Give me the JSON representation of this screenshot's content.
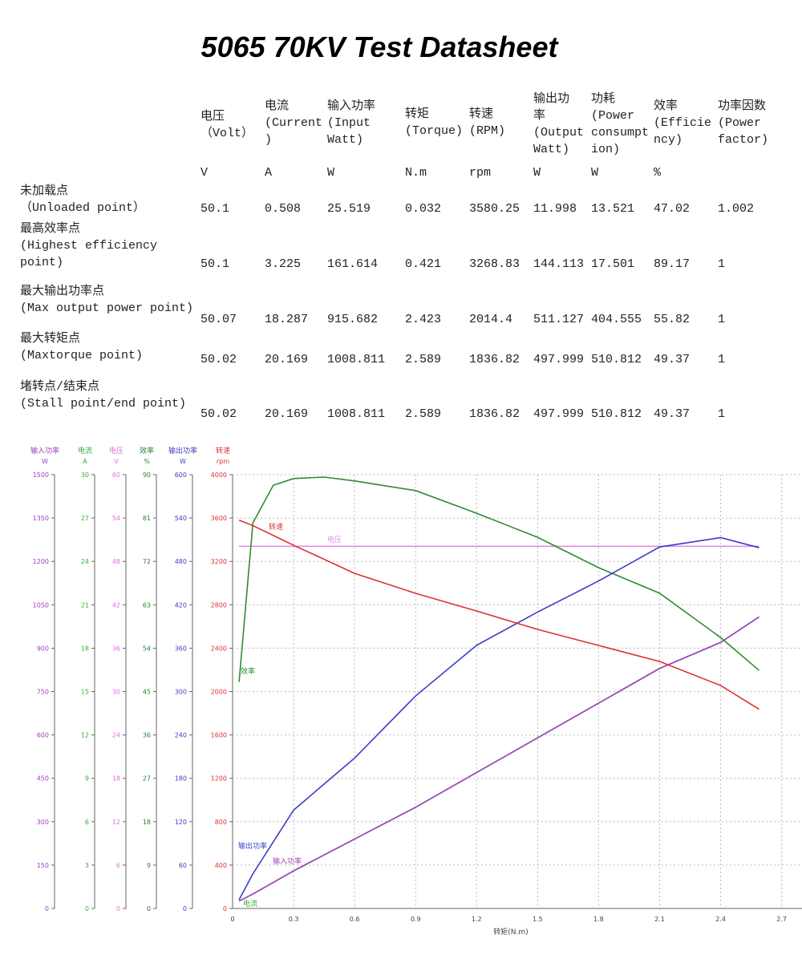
{
  "header": {
    "title": "5065 70KV Test Datasheet"
  },
  "table": {
    "columns": [
      "电压\n（Volt）",
      "电流\n(Current\n)",
      "输入功率\n(Input\nWatt)",
      "转矩\n(Torque)",
      "转速\n(RPM)",
      "输出功\n率\n(Output\nWatt)",
      "功耗\n(Power\nconsumpt\nion)",
      "效率\n(Efficie\nncy)",
      "功率因数\n(Power\nfactor)"
    ],
    "units": [
      "V",
      "A",
      "W",
      "N.m",
      "rpm",
      "W",
      "W",
      "%",
      null
    ],
    "rows": [
      {
        "label": "未加载点\n（Unloaded point）",
        "values": [
          50.1,
          0.508,
          25.519,
          0.032,
          3580.25,
          11.998,
          13.521,
          47.02,
          1.002
        ]
      },
      {
        "label": "最高效率点\n(Highest efficiency\npoint)",
        "values": [
          50.1,
          3.225,
          161.614,
          0.421,
          3268.83,
          144.113,
          17.501,
          89.17,
          1
        ]
      },
      {
        "label": "最大输出功率点\n(Max output power point)",
        "values": [
          50.07,
          18.287,
          915.682,
          2.423,
          2014.4,
          511.127,
          404.555,
          55.82,
          1
        ]
      },
      {
        "label": "最大转矩点\n(Maxtorque point)",
        "values": [
          50.02,
          20.169,
          1008.811,
          2.589,
          1836.82,
          497.999,
          510.812,
          49.37,
          1
        ]
      },
      {
        "label": "堵转点/结束点\n(Stall point/end point)",
        "values": [
          50.02,
          20.169,
          1008.811,
          2.589,
          1836.82,
          497.999,
          510.812,
          49.37,
          1
        ]
      }
    ]
  },
  "chart_data": {
    "type": "line",
    "x_label": "转矩(N.m)",
    "xlim": [
      0,
      2.8
    ],
    "xticks": [
      0,
      0.3,
      0.6,
      0.9,
      1.2,
      1.5,
      1.8,
      2.1,
      2.4,
      2.7
    ],
    "grid": true,
    "y_axes": [
      {
        "name": "输入功率",
        "unit": "W",
        "color": "#a040c0",
        "ylim": [
          0,
          1500
        ],
        "yticks": [
          0,
          150,
          300,
          450,
          600,
          750,
          900,
          1050,
          1200,
          1350,
          1500
        ]
      },
      {
        "name": "电流",
        "unit": "A",
        "color": "#30b030",
        "ylim": [
          0,
          30
        ],
        "yticks": [
          0,
          3,
          6,
          9,
          12,
          15,
          18,
          21,
          24,
          27,
          30
        ]
      },
      {
        "name": "电压",
        "unit": "V",
        "color": "#e070e0",
        "ylim": [
          0,
          60
        ],
        "yticks": [
          0,
          6,
          12,
          18,
          24,
          30,
          36,
          42,
          48,
          54,
          60
        ]
      },
      {
        "name": "效率",
        "unit": "%",
        "color": "#308030",
        "ylim": [
          0,
          90
        ],
        "yticks": [
          0,
          9,
          18,
          27,
          36,
          45,
          54,
          63,
          72,
          81,
          90
        ]
      },
      {
        "name": "输出功率",
        "unit": "W",
        "color": "#4040c0",
        "ylim": [
          0,
          600
        ],
        "yticks": [
          0,
          60,
          120,
          180,
          240,
          300,
          360,
          420,
          480,
          540,
          600
        ]
      },
      {
        "name": "转速",
        "unit": "rpm",
        "color": "#e03030",
        "ylim": [
          0,
          4000
        ],
        "yticks": [
          0,
          400,
          800,
          1200,
          1600,
          2000,
          2400,
          2800,
          3200,
          3600,
          4000
        ]
      }
    ],
    "x": [
      0.032,
      0.1,
      0.2,
      0.3,
      0.45,
      0.6,
      0.9,
      1.2,
      1.5,
      1.8,
      2.1,
      2.4,
      2.589
    ],
    "series": [
      {
        "name": "电流",
        "color": "#30b030",
        "axis": 1,
        "values": [
          0.51,
          1.0,
          1.8,
          2.6,
          3.7,
          4.8,
          7.0,
          9.4,
          11.8,
          14.2,
          16.6,
          18.4,
          20.17
        ]
      },
      {
        "name": "输入功率",
        "color": "#a040c0",
        "axis": 0,
        "values": [
          25.5,
          50,
          90,
          130,
          185,
          240,
          350,
          470,
          590,
          710,
          830,
          920,
          1008
        ]
      },
      {
        "name": "电压",
        "color": "#e090e8",
        "axis": 2,
        "values": [
          50.1,
          50.1,
          50.1,
          50.1,
          50.1,
          50.1,
          50.1,
          50.1,
          50.1,
          50.1,
          50.1,
          50.1,
          50.1
        ]
      },
      {
        "name": "效率",
        "color": "#308a30",
        "axis": 3,
        "values": [
          47,
          80,
          87.8,
          89.2,
          89.5,
          88.7,
          86.7,
          82,
          77,
          70.7,
          65.4,
          56.2,
          49.4
        ]
      },
      {
        "name": "输出功率",
        "color": "#3c3cc8",
        "axis": 4,
        "values": [
          12,
          48,
          92,
          136,
          172,
          208,
          294,
          364,
          410,
          453,
          500,
          513,
          499
        ]
      },
      {
        "name": "转速",
        "color": "#e03030",
        "axis": 5,
        "values": [
          3580,
          3530,
          3440,
          3349,
          3220,
          3090,
          2906,
          2743,
          2573,
          2425,
          2277,
          2056,
          1837
        ]
      }
    ]
  }
}
